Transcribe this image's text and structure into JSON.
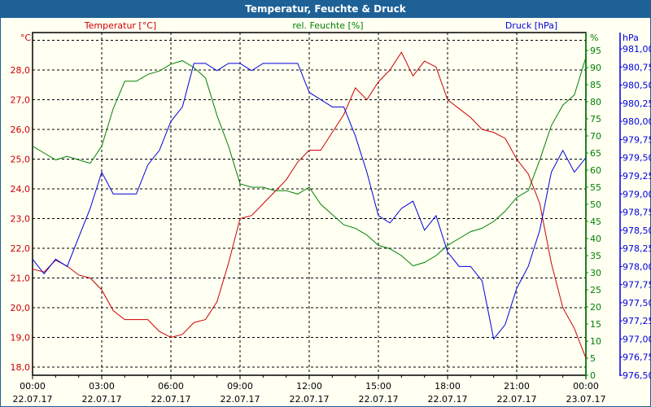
{
  "window": {
    "title": "Temperatur, Feuchte & Druck"
  },
  "chart_data": {
    "type": "line",
    "title": "Temperatur, Feuchte & Druck",
    "x_hours": [
      0,
      0.5,
      1,
      1.5,
      2,
      2.5,
      3,
      3.5,
      4,
      4.5,
      5,
      5.5,
      6,
      6.5,
      7,
      7.5,
      8,
      8.5,
      9,
      9.5,
      10,
      10.5,
      11,
      11.5,
      12,
      12.5,
      13,
      13.5,
      14,
      14.5,
      15,
      15.5,
      16,
      16.5,
      17,
      17.5,
      18,
      18.5,
      19,
      19.5,
      20,
      20.5,
      21,
      21.5,
      22,
      22.5,
      23,
      23.5,
      24
    ],
    "x_ticks": [
      {
        "time": "00:00",
        "date": "22.07.17"
      },
      {
        "time": "03:00",
        "date": "22.07.17"
      },
      {
        "time": "06:00",
        "date": "22.07.17"
      },
      {
        "time": "09:00",
        "date": "22.07.17"
      },
      {
        "time": "12:00",
        "date": "22.07.17"
      },
      {
        "time": "15:00",
        "date": "22.07.17"
      },
      {
        "time": "18:00",
        "date": "22.07.17"
      },
      {
        "time": "21:00",
        "date": "22.07.17"
      },
      {
        "time": "00:00",
        "date": "23.07.17"
      }
    ],
    "series": [
      {
        "name": "Temperatur [°C]",
        "unit": "°C",
        "color": "#cc0000",
        "ylim": [
          17.5,
          29.5
        ],
        "ticks": [
          "18,0",
          "19,0",
          "20,0",
          "21,0",
          "22,0",
          "23,0",
          "24,0",
          "25,0",
          "26,0",
          "27,0",
          "28,0"
        ],
        "values": [
          21.3,
          21.2,
          21.6,
          21.4,
          21.1,
          21.0,
          20.6,
          19.9,
          19.6,
          19.6,
          19.6,
          19.2,
          19.0,
          19.1,
          19.5,
          19.6,
          20.2,
          21.5,
          23.0,
          23.1,
          23.5,
          23.9,
          24.3,
          24.9,
          25.3,
          25.3,
          25.9,
          26.5,
          27.4,
          27.0,
          27.6,
          28.0,
          28.6,
          27.8,
          28.3,
          28.1,
          27.0,
          26.7,
          26.4,
          26.0,
          25.9,
          25.7,
          25.0,
          24.5,
          23.5,
          21.5,
          20.0,
          19.3,
          18.3
        ]
      },
      {
        "name": "rel. Feuchte [%]",
        "unit": "%",
        "color": "#008000",
        "ylim": [
          0,
          100
        ],
        "ticks": [
          "0",
          "5",
          "10",
          "15",
          "20",
          "25",
          "30",
          "35",
          "40",
          "45",
          "50",
          "55",
          "60",
          "65",
          "70",
          "75",
          "80",
          "85",
          "90",
          "95"
        ],
        "values": [
          67,
          65,
          63,
          64,
          63,
          62,
          67,
          78,
          86,
          86,
          88,
          89,
          91,
          92,
          90,
          87,
          76,
          67,
          56,
          55,
          55,
          54,
          54,
          53,
          55,
          50,
          47,
          44,
          43,
          41,
          38,
          37,
          35,
          32,
          33,
          35,
          38,
          40,
          42,
          43,
          45,
          48,
          52,
          54,
          63,
          73,
          79,
          82,
          93
        ]
      },
      {
        "name": "Druck [hPa]",
        "unit": "hPa",
        "color": "#0000dd",
        "ylim": [
          976.5,
          981.25
        ],
        "ticks": [
          "976,50",
          "976,75",
          "977,00",
          "977,25",
          "977,50",
          "977,75",
          "978,00",
          "978,25",
          "978,50",
          "978,75",
          "979,00",
          "979,25",
          "979,50",
          "979,75",
          "980,00",
          "980,25",
          "980,50",
          "980,75",
          "981,00"
        ],
        "values": [
          978.1,
          977.9,
          978.1,
          978.0,
          978.4,
          978.8,
          979.3,
          979.0,
          979.0,
          979.0,
          979.4,
          979.6,
          980.0,
          980.2,
          980.8,
          980.8,
          980.7,
          980.8,
          980.8,
          980.7,
          980.8,
          980.8,
          980.8,
          980.8,
          980.4,
          980.3,
          980.2,
          980.2,
          979.8,
          979.3,
          978.7,
          978.6,
          978.8,
          978.9,
          978.5,
          978.7,
          978.2,
          978.0,
          978.0,
          977.8,
          977.0,
          977.2,
          977.7,
          978.0,
          978.5,
          979.3,
          979.6,
          979.3,
          979.5
        ]
      }
    ],
    "grid": true
  }
}
